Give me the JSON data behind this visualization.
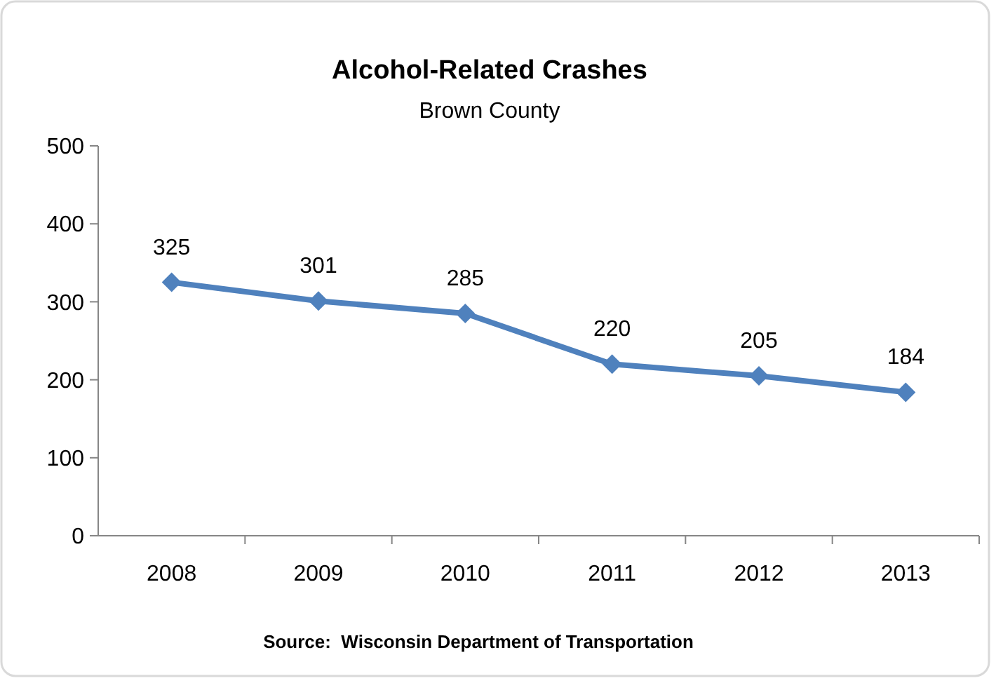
{
  "chart_data": {
    "type": "line",
    "title": "Alcohol-Related Crashes",
    "subtitle": "Brown County",
    "categories": [
      "2008",
      "2009",
      "2010",
      "2011",
      "2012",
      "2013"
    ],
    "series": [
      {
        "color": "#4f81bd",
        "values": [
          325,
          301,
          285,
          220,
          205,
          184
        ]
      }
    ],
    "ylim": [
      0,
      500
    ],
    "yticks": [
      0,
      100,
      200,
      300,
      400,
      500
    ],
    "marker": "diamond",
    "data_labels": true,
    "grid": false,
    "annotations": [
      "Source:  Wisconsin Department of Transportation"
    ]
  }
}
